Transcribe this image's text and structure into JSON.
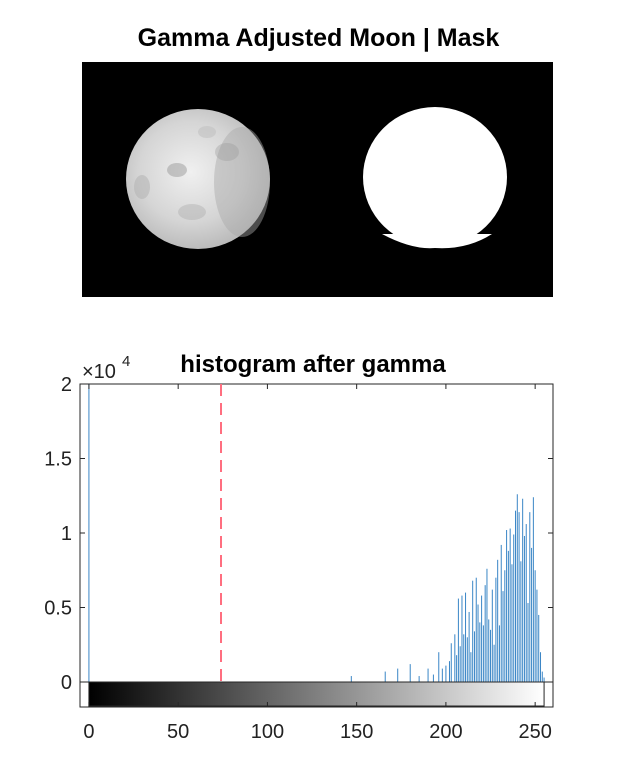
{
  "figure": {
    "top_title": "Gamma Adjusted Moon | Mask",
    "image_panel_background": "#000000",
    "moon_color": "#d8d8d8",
    "mask_color": "#ffffff"
  },
  "chart_data": {
    "type": "bar",
    "title": "histogram after gamma",
    "xlabel": "",
    "ylabel": "",
    "xlim": [
      -5,
      260
    ],
    "ylim": [
      0,
      20000
    ],
    "y_exponent_label": "×10",
    "y_exponent_power": "4",
    "x_ticks": [
      0,
      50,
      100,
      150,
      200,
      250
    ],
    "x_tick_labels": [
      "0",
      "50",
      "100",
      "150",
      "200",
      "250"
    ],
    "y_ticks": [
      0,
      5000,
      10000,
      15000,
      20000
    ],
    "y_tick_labels": [
      "0",
      "0.5",
      "1",
      "1.5",
      "2"
    ],
    "threshold_line": {
      "x": 74,
      "color": "#ff6e7f",
      "style": "dashed"
    },
    "colorbar": {
      "from": 0,
      "to": 255,
      "gradient": "grayscale"
    },
    "bar_color": "#3a86c6",
    "series": [
      {
        "bins": [
          0,
          147,
          166,
          173,
          180,
          185,
          190,
          193,
          196,
          198,
          200,
          202,
          203,
          205,
          206,
          207,
          208,
          209,
          210,
          211,
          212,
          213,
          214,
          215,
          216,
          217,
          218,
          219,
          220,
          221,
          222,
          223,
          224,
          225,
          226,
          227,
          228,
          229,
          230,
          231,
          232,
          233,
          234,
          235,
          236,
          237,
          238,
          239,
          240,
          241,
          242,
          243,
          244,
          245,
          246,
          247,
          248,
          249,
          250,
          251,
          252,
          253,
          254,
          255
        ],
        "values": [
          20000,
          400,
          700,
          900,
          1200,
          400,
          900,
          500,
          2000,
          900,
          1100,
          1400,
          2600,
          3200,
          1800,
          5600,
          2400,
          5800,
          3200,
          6000,
          3000,
          4700,
          2000,
          6800,
          3400,
          7000,
          5200,
          4000,
          5800,
          3800,
          6500,
          7600,
          4200,
          3500,
          6200,
          2500,
          7000,
          8200,
          3800,
          9200,
          6100,
          7500,
          10200,
          8800,
          10300,
          7900,
          9900,
          11500,
          12600,
          11400,
          8100,
          12300,
          9800,
          10600,
          5300,
          11400,
          9000,
          12400,
          7500,
          6200,
          4500,
          2000,
          700,
          300
        ]
      }
    ]
  }
}
